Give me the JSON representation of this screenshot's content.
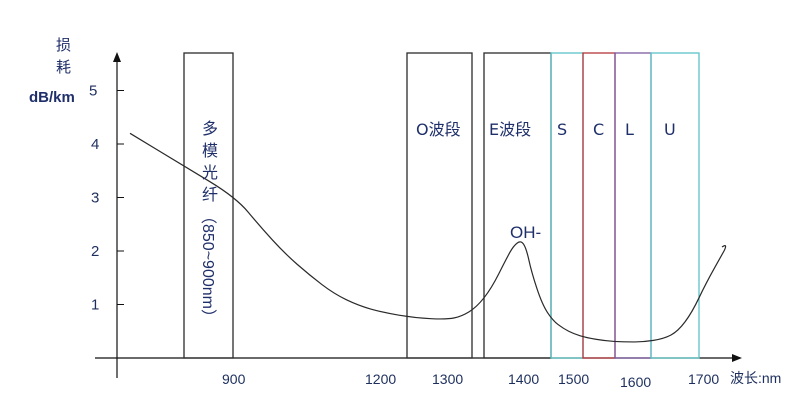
{
  "chart_data": {
    "type": "line",
    "ylabel_text": "损耗",
    "ylabel_unit": "dB/km",
    "xlabel": "波长:nm",
    "yticks": [
      1,
      2,
      3,
      4,
      5
    ],
    "xticks": [
      "900",
      "1200",
      "1300",
      "1400",
      "1500",
      "1600",
      "1700"
    ],
    "bands": [
      {
        "label": "多模光纤",
        "sublabel": "（850~900nm）",
        "color": "#2b2b2b"
      },
      {
        "label": "O波段",
        "color": "#2b2b2b"
      },
      {
        "label": "E波段",
        "color": "#2b2b2b"
      },
      {
        "label": "S",
        "color": "#5cc4c8"
      },
      {
        "label": "C",
        "color": "#b3363a"
      },
      {
        "label": "L",
        "color": "#7b5aa0"
      },
      {
        "label": "U",
        "color": "#5cc4c8"
      }
    ],
    "annotation": "OH-",
    "series": [
      {
        "x": [
          800,
          850,
          900,
          950,
          1000,
          1050,
          1100,
          1150,
          1200,
          1250,
          1300,
          1320,
          1340,
          1360,
          1380,
          1390,
          1400,
          1410,
          1420,
          1440,
          1460,
          1480,
          1500,
          1520,
          1550,
          1580,
          1610,
          1640,
          1660,
          1680,
          1700,
          1720
        ],
        "y": [
          4.2,
          3.6,
          3.0,
          2.45,
          1.95,
          1.55,
          1.2,
          0.98,
          0.85,
          0.75,
          0.72,
          0.78,
          0.95,
          1.3,
          1.85,
          2.1,
          2.2,
          2.05,
          1.6,
          1.0,
          0.7,
          0.55,
          0.45,
          0.38,
          0.32,
          0.3,
          0.3,
          0.36,
          0.5,
          0.85,
          1.4,
          2.0
        ]
      }
    ]
  }
}
